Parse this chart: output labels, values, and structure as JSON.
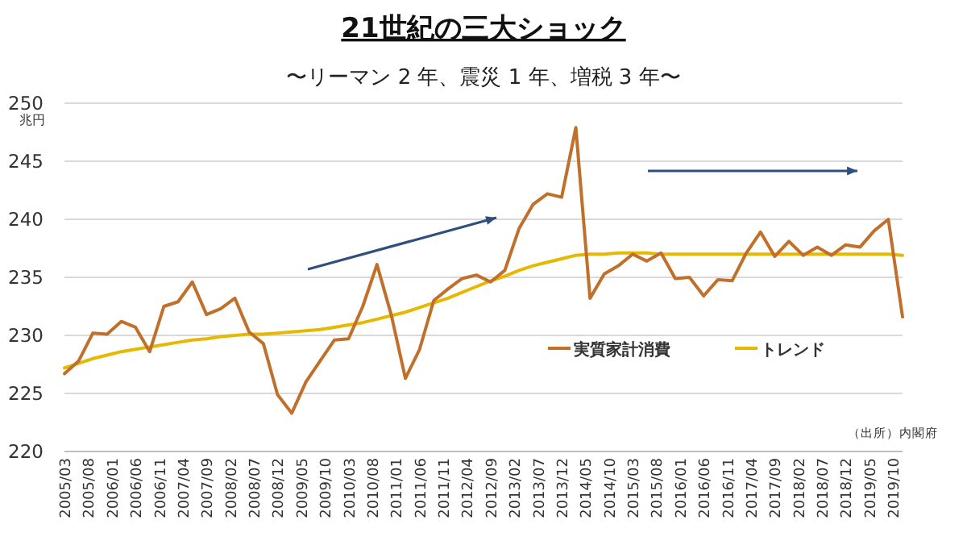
{
  "chart_data": {
    "type": "line",
    "title": "21世紀の三大ショック",
    "subtitle": "〜リーマン 2 年、震災 1 年、増税 3 年〜",
    "ylabel": "兆円",
    "annotations": [
      "（出所）内閣府"
    ],
    "x": [
      "2005-03",
      "2005-06",
      "2005-09",
      "2005-12",
      "2006-03",
      "2006-06",
      "2006-09",
      "2006-12",
      "2007-03",
      "2007-06",
      "2007-09",
      "2007-12",
      "2008-03",
      "2008-06",
      "2008-09",
      "2008-12",
      "2009-03",
      "2009-06",
      "2009-09",
      "2009-12",
      "2010-03",
      "2010-06",
      "2010-09",
      "2010-12",
      "2011-03",
      "2011-06",
      "2011-09",
      "2011-12",
      "2012-03",
      "2012-06",
      "2012-09",
      "2012-12",
      "2013-03",
      "2013-06",
      "2013-09",
      "2013-12",
      "2014-03",
      "2014-06",
      "2014-09",
      "2014-12",
      "2015-03",
      "2015-06",
      "2015-09",
      "2015-12",
      "2016-03",
      "2016-06",
      "2016-09",
      "2016-12",
      "2017-03",
      "2017-06",
      "2017-09",
      "2017-12",
      "2018-03",
      "2018-06",
      "2018-09",
      "2018-12",
      "2019-03",
      "2019-06",
      "2019-09",
      "2019-12"
    ],
    "series": [
      {
        "name": "実質家計消費",
        "color": "#c0702a",
        "values": [
          226.7,
          227.8,
          230.2,
          230.1,
          231.2,
          230.7,
          228.6,
          232.5,
          232.9,
          234.6,
          231.8,
          232.3,
          233.2,
          230.3,
          229.3,
          224.9,
          223.3,
          226.0,
          227.8,
          229.6,
          229.7,
          232.5,
          236.1,
          231.8,
          226.3,
          228.8,
          233.0,
          234.0,
          234.9,
          235.2,
          234.6,
          235.6,
          239.2,
          241.3,
          242.2,
          241.9,
          247.9,
          233.2,
          235.3,
          236.0,
          237.0,
          236.4,
          237.1,
          234.9,
          235.0,
          233.4,
          234.8,
          234.7,
          237.1,
          238.9,
          236.8,
          238.1,
          236.9,
          237.6,
          236.9,
          237.8,
          237.6,
          239.0,
          240.0,
          231.6
        ]
      },
      {
        "name": "トレンド",
        "color": "#e6b800",
        "values": [
          227.2,
          227.6,
          228.0,
          228.3,
          228.6,
          228.8,
          229.0,
          229.2,
          229.4,
          229.6,
          229.7,
          229.9,
          230.0,
          230.1,
          230.1,
          230.2,
          230.3,
          230.4,
          230.5,
          230.7,
          230.9,
          231.1,
          231.4,
          231.7,
          232.0,
          232.4,
          232.8,
          233.2,
          233.7,
          234.2,
          234.7,
          235.1,
          235.6,
          236.0,
          236.3,
          236.6,
          236.9,
          237.0,
          237.0,
          237.1,
          237.1,
          237.1,
          237.0,
          237.0,
          237.0,
          237.0,
          237.0,
          237.0,
          237.0,
          237.0,
          237.0,
          237.0,
          237.0,
          237.0,
          237.0,
          237.0,
          237.0,
          237.0,
          237.0,
          236.9
        ]
      }
    ],
    "xlim": [
      "2005-03",
      "2019-12"
    ],
    "xticks": [
      {
        "value": "2005-03",
        "label": "2005/03"
      },
      {
        "value": "2005-08",
        "label": "2005/08"
      },
      {
        "value": "2006-01",
        "label": "2006/01"
      },
      {
        "value": "2006-06",
        "label": "2006/06"
      },
      {
        "value": "2006-11",
        "label": "2006/11"
      },
      {
        "value": "2007-04",
        "label": "2007/04"
      },
      {
        "value": "2007-09",
        "label": "2007/09"
      },
      {
        "value": "2008-02",
        "label": "2008/02"
      },
      {
        "value": "2008-07",
        "label": "2008/07"
      },
      {
        "value": "2008-12",
        "label": "2008/12"
      },
      {
        "value": "2009-05",
        "label": "2009/05"
      },
      {
        "value": "2009-10",
        "label": "2009/10"
      },
      {
        "value": "2010-03",
        "label": "2010/03"
      },
      {
        "value": "2010-08",
        "label": "2010/08"
      },
      {
        "value": "2011-01",
        "label": "2011/01"
      },
      {
        "value": "2011-06",
        "label": "2011/06"
      },
      {
        "value": "2011-11",
        "label": "2011/11"
      },
      {
        "value": "2012-04",
        "label": "2012/04"
      },
      {
        "value": "2012-09",
        "label": "2012/09"
      },
      {
        "value": "2013-02",
        "label": "2013/02"
      },
      {
        "value": "2013-07",
        "label": "2013/07"
      },
      {
        "value": "2013-12",
        "label": "2013/12"
      },
      {
        "value": "2014-05",
        "label": "2014/05"
      },
      {
        "value": "2014-10",
        "label": "2014/10"
      },
      {
        "value": "2015-03",
        "label": "2015/03"
      },
      {
        "value": "2015-08",
        "label": "2015/08"
      },
      {
        "value": "2016-01",
        "label": "2016/01"
      },
      {
        "value": "2016-06",
        "label": "2016/06"
      },
      {
        "value": "2016-11",
        "label": "2016/11"
      },
      {
        "value": "2017-04",
        "label": "2017/04"
      },
      {
        "value": "2017-09",
        "label": "2017/09"
      },
      {
        "value": "2018-02",
        "label": "2018/02"
      },
      {
        "value": "2018-07",
        "label": "2018/07"
      },
      {
        "value": "2018-12",
        "label": "2018/12"
      },
      {
        "value": "2019-05",
        "label": "2019/05"
      },
      {
        "value": "2019-10",
        "label": "2019/10"
      }
    ],
    "ylim": [
      220,
      250
    ],
    "yticks": [
      220,
      225,
      230,
      235,
      240,
      245,
      250
    ],
    "grid": "y",
    "legend": "bottom right",
    "marker": "none",
    "line_style": "solid"
  }
}
